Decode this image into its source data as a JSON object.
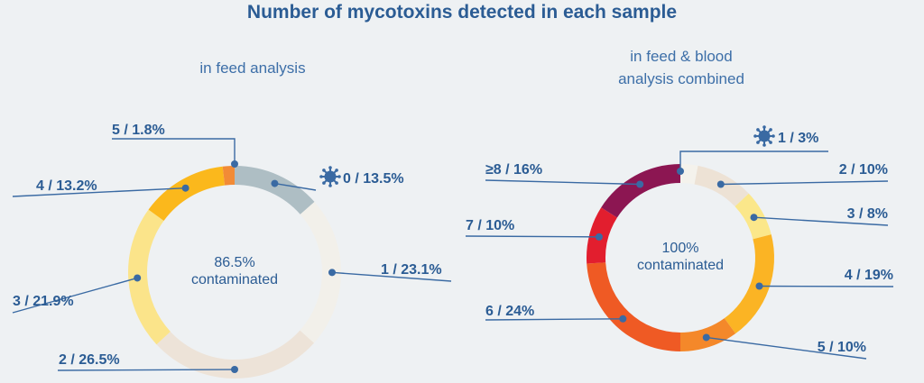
{
  "title": "Number of mycotoxins detected in each sample",
  "colors": {
    "text": "#2b5c94",
    "line": "#3a6aa3",
    "background": "#eef1f3"
  },
  "chart_data": [
    {
      "type": "pie",
      "subtitle": "in feed analysis",
      "center_lines": [
        "86.5%",
        "contaminated"
      ],
      "slices": [
        {
          "label": "0 / 13.5%",
          "value": 13.5,
          "color": "#aebec4",
          "icon": "virus-icon"
        },
        {
          "label": "1 / 23.1%",
          "value": 23.1,
          "color": "#f2f0ea"
        },
        {
          "label": "2 / 26.5%",
          "value": 26.5,
          "color": "#ede3d8"
        },
        {
          "label": "3 / 21.9%",
          "value": 21.9,
          "color": "#fbe48a"
        },
        {
          "label": "4 / 13.2%",
          "value": 13.2,
          "color": "#fbb81c"
        },
        {
          "label": "5 / 1.8%",
          "value": 1.8,
          "color": "#f28b36"
        }
      ]
    },
    {
      "type": "pie",
      "subtitle_lines": [
        "in feed & blood",
        "analysis combined"
      ],
      "center_lines": [
        "100%",
        "contaminated"
      ],
      "slices": [
        {
          "label": "1 / 3%",
          "value": 3,
          "color": "#f4f2ec",
          "icon": "virus-icon"
        },
        {
          "label": "2 / 10%",
          "value": 10,
          "color": "#ede2d5"
        },
        {
          "label": "3 / 8%",
          "value": 8,
          "color": "#fbe78a"
        },
        {
          "label": "4 / 19%",
          "value": 19,
          "color": "#fbb424"
        },
        {
          "label": "5 / 10%",
          "value": 10,
          "color": "#f4882a"
        },
        {
          "label": "6 / 24%",
          "value": 24,
          "color": "#ef5a24"
        },
        {
          "label": "7 / 10%",
          "value": 10,
          "color": "#e21e2e"
        },
        {
          "label": "≥8 / 16%",
          "value": 16,
          "color": "#8c1652"
        }
      ]
    }
  ]
}
